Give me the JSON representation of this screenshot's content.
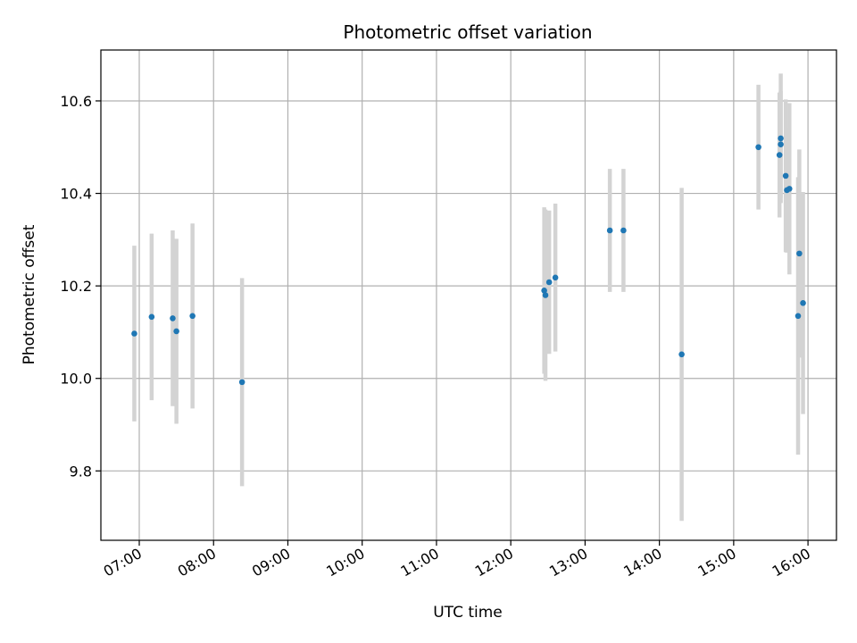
{
  "chart_data": {
    "type": "scatter",
    "title": "Photometric offset variation",
    "xlabel": "UTC time",
    "ylabel": "Photometric offset",
    "x_axis_kind": "time",
    "xlim": [
      "06:29",
      "16:23"
    ],
    "ylim": [
      9.65,
      10.71
    ],
    "x_ticks": [
      "07:00",
      "08:00",
      "09:00",
      "10:00",
      "11:00",
      "12:00",
      "13:00",
      "14:00",
      "15:00",
      "16:00"
    ],
    "y_ticks": [
      "9.8",
      "10.0",
      "10.2",
      "10.4",
      "10.6"
    ],
    "grid": true,
    "marker_color": "#1f77b4",
    "errorbar_color": "#d3d3d3",
    "points": [
      {
        "x": "06:56",
        "y": 10.097,
        "err": 0.19
      },
      {
        "x": "07:10",
        "y": 10.133,
        "err": 0.18
      },
      {
        "x": "07:27",
        "y": 10.13,
        "err": 0.19
      },
      {
        "x": "07:30",
        "y": 10.102,
        "err": 0.2
      },
      {
        "x": "07:43",
        "y": 10.135,
        "err": 0.2
      },
      {
        "x": "08:23",
        "y": 9.992,
        "err": 0.225
      },
      {
        "x": "12:27",
        "y": 10.19,
        "err": 0.18
      },
      {
        "x": "12:28",
        "y": 10.18,
        "err": 0.185
      },
      {
        "x": "12:31",
        "y": 10.208,
        "err": 0.155
      },
      {
        "x": "12:36",
        "y": 10.218,
        "err": 0.16
      },
      {
        "x": "13:20",
        "y": 10.32,
        "err": 0.133
      },
      {
        "x": "13:31",
        "y": 10.32,
        "err": 0.133
      },
      {
        "x": "14:18",
        "y": 10.052,
        "err": 0.36
      },
      {
        "x": "15:20",
        "y": 10.5,
        "err": 0.135
      },
      {
        "x": "15:37",
        "y": 10.483,
        "err": 0.135
      },
      {
        "x": "15:38",
        "y": 10.506,
        "err": 0.115
      },
      {
        "x": "15:38",
        "y": 10.519,
        "err": 0.14
      },
      {
        "x": "15:42",
        "y": 10.438,
        "err": 0.165
      },
      {
        "x": "15:43",
        "y": 10.407,
        "err": 0.135
      },
      {
        "x": "15:45",
        "y": 10.41,
        "err": 0.185
      },
      {
        "x": "15:52",
        "y": 10.135,
        "err": 0.3
      },
      {
        "x": "15:53",
        "y": 10.27,
        "err": 0.225
      },
      {
        "x": "15:56",
        "y": 10.163,
        "err": 0.24
      }
    ]
  }
}
